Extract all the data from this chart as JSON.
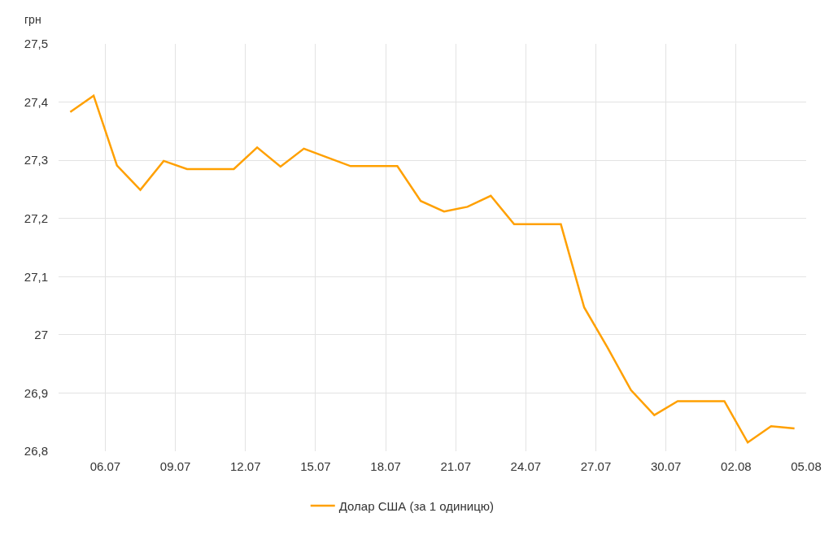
{
  "chart_data": {
    "type": "line",
    "ylabel": "грн",
    "x": [
      "--07-04T12:00",
      "--07-05T12:00",
      "--07-06T12:00",
      "--07-07T12:00",
      "--07-08T12:00",
      "--07-09T12:00",
      "--07-10T12:00",
      "--07-11T12:00",
      "--07-12T12:00",
      "--07-13T12:00",
      "--07-14T12:00",
      "--07-15T12:00",
      "--07-16T12:00",
      "--07-17T12:00",
      "--07-18T12:00",
      "--07-19T12:00",
      "--07-20T12:00",
      "--07-21T12:00",
      "--07-22T12:00",
      "--07-23T12:00",
      "--07-24T12:00",
      "--07-25T12:00",
      "--07-26T12:00",
      "--07-27T12:00",
      "--07-28T12:00",
      "--07-29T12:00",
      "--07-30T12:00",
      "--07-31T12:00",
      "--08-01T12:00",
      "--08-02T12:00",
      "--08-03T12:00",
      "--08-04T12:00"
    ],
    "series": [
      {
        "name": "Долар США (за 1 одиницю)",
        "color": "#ffa000",
        "values": [
          27.383,
          27.411,
          27.291,
          27.249,
          27.299,
          27.285,
          27.285,
          27.285,
          27.322,
          27.289,
          27.32,
          27.305,
          27.29,
          27.29,
          27.29,
          27.23,
          27.212,
          27.22,
          27.239,
          27.19,
          27.19,
          27.19,
          27.047,
          26.978,
          26.905,
          26.862,
          26.886,
          26.886,
          26.886,
          26.815,
          26.843,
          26.839
        ]
      }
    ],
    "xlim": [
      "--07-04",
      "--08-05"
    ],
    "xticks": [
      {
        "value": "--07-06",
        "label": "06.07"
      },
      {
        "value": "--07-09",
        "label": "09.07"
      },
      {
        "value": "--07-12",
        "label": "12.07"
      },
      {
        "value": "--07-15",
        "label": "15.07"
      },
      {
        "value": "--07-18",
        "label": "18.07"
      },
      {
        "value": "--07-21",
        "label": "21.07"
      },
      {
        "value": "--07-24",
        "label": "24.07"
      },
      {
        "value": "--07-27",
        "label": "27.07"
      },
      {
        "value": "--07-30",
        "label": "30.07"
      },
      {
        "value": "--08-02",
        "label": "02.08"
      },
      {
        "value": "--08-05",
        "label": "05.08"
      }
    ],
    "ylim": [
      26.8,
      27.5
    ],
    "yticks": [
      {
        "value": 26.8,
        "label": "26,8"
      },
      {
        "value": 26.9,
        "label": "26,9"
      },
      27,
      {
        "value": 27.1,
        "label": "27,1"
      },
      {
        "value": 27.2,
        "label": "27,2"
      },
      {
        "value": 27.3,
        "label": "27,3"
      },
      {
        "value": 27.4,
        "label": "27,4"
      },
      {
        "value": 27.5,
        "label": "27,5"
      }
    ],
    "grid": true,
    "legend": "bottom"
  }
}
